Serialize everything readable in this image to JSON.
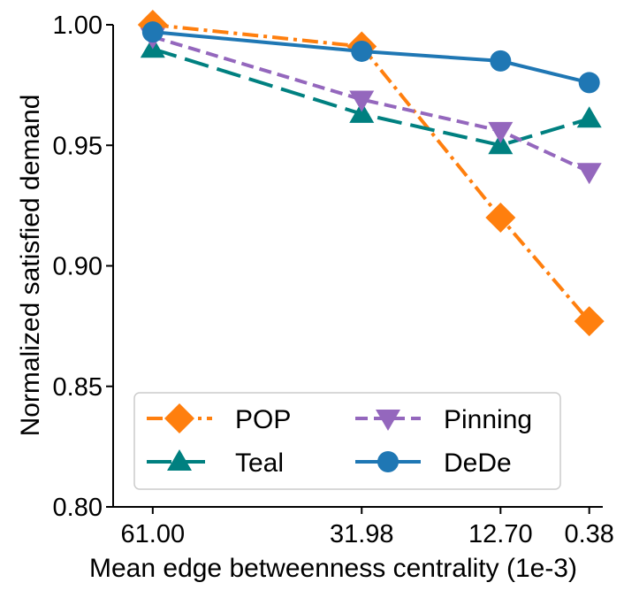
{
  "chart_data": {
    "type": "line",
    "title": "",
    "xlabel": "Mean edge betweenness centrality (1e-3)",
    "ylabel": "Normalized satisfied demand",
    "x": [
      61.0,
      31.98,
      12.7,
      0.38
    ],
    "x_tick_labels": [
      "61.00",
      "31.98",
      "12.70",
      "0.38"
    ],
    "xlim": [
      66.5,
      -1.5
    ],
    "ylim": [
      0.8,
      1.0
    ],
    "y_ticks": [
      0.8,
      0.85,
      0.9,
      0.95,
      1.0
    ],
    "y_tick_labels": [
      "0.80",
      "0.85",
      "0.90",
      "0.95",
      "1.00"
    ],
    "grid": false,
    "legend_position": "lower-left",
    "legend_columns": 2,
    "series": [
      {
        "name": "POP",
        "values": [
          1.0,
          0.991,
          0.92,
          0.877
        ],
        "color": "#ff7f0e",
        "marker": "diamond",
        "dash": "dashdot"
      },
      {
        "name": "Teal",
        "values": [
          0.99,
          0.963,
          0.95,
          0.961
        ],
        "color": "#008080",
        "marker": "triangle-up",
        "dash": "longdash"
      },
      {
        "name": "Pinning",
        "values": [
          0.995,
          0.969,
          0.956,
          0.939
        ],
        "color": "#9467bd",
        "marker": "triangle-down",
        "dash": "dashed"
      },
      {
        "name": "DeDe",
        "values": [
          0.997,
          0.989,
          0.985,
          0.976
        ],
        "color": "#1f77b4",
        "marker": "circle",
        "dash": "solid"
      }
    ]
  }
}
